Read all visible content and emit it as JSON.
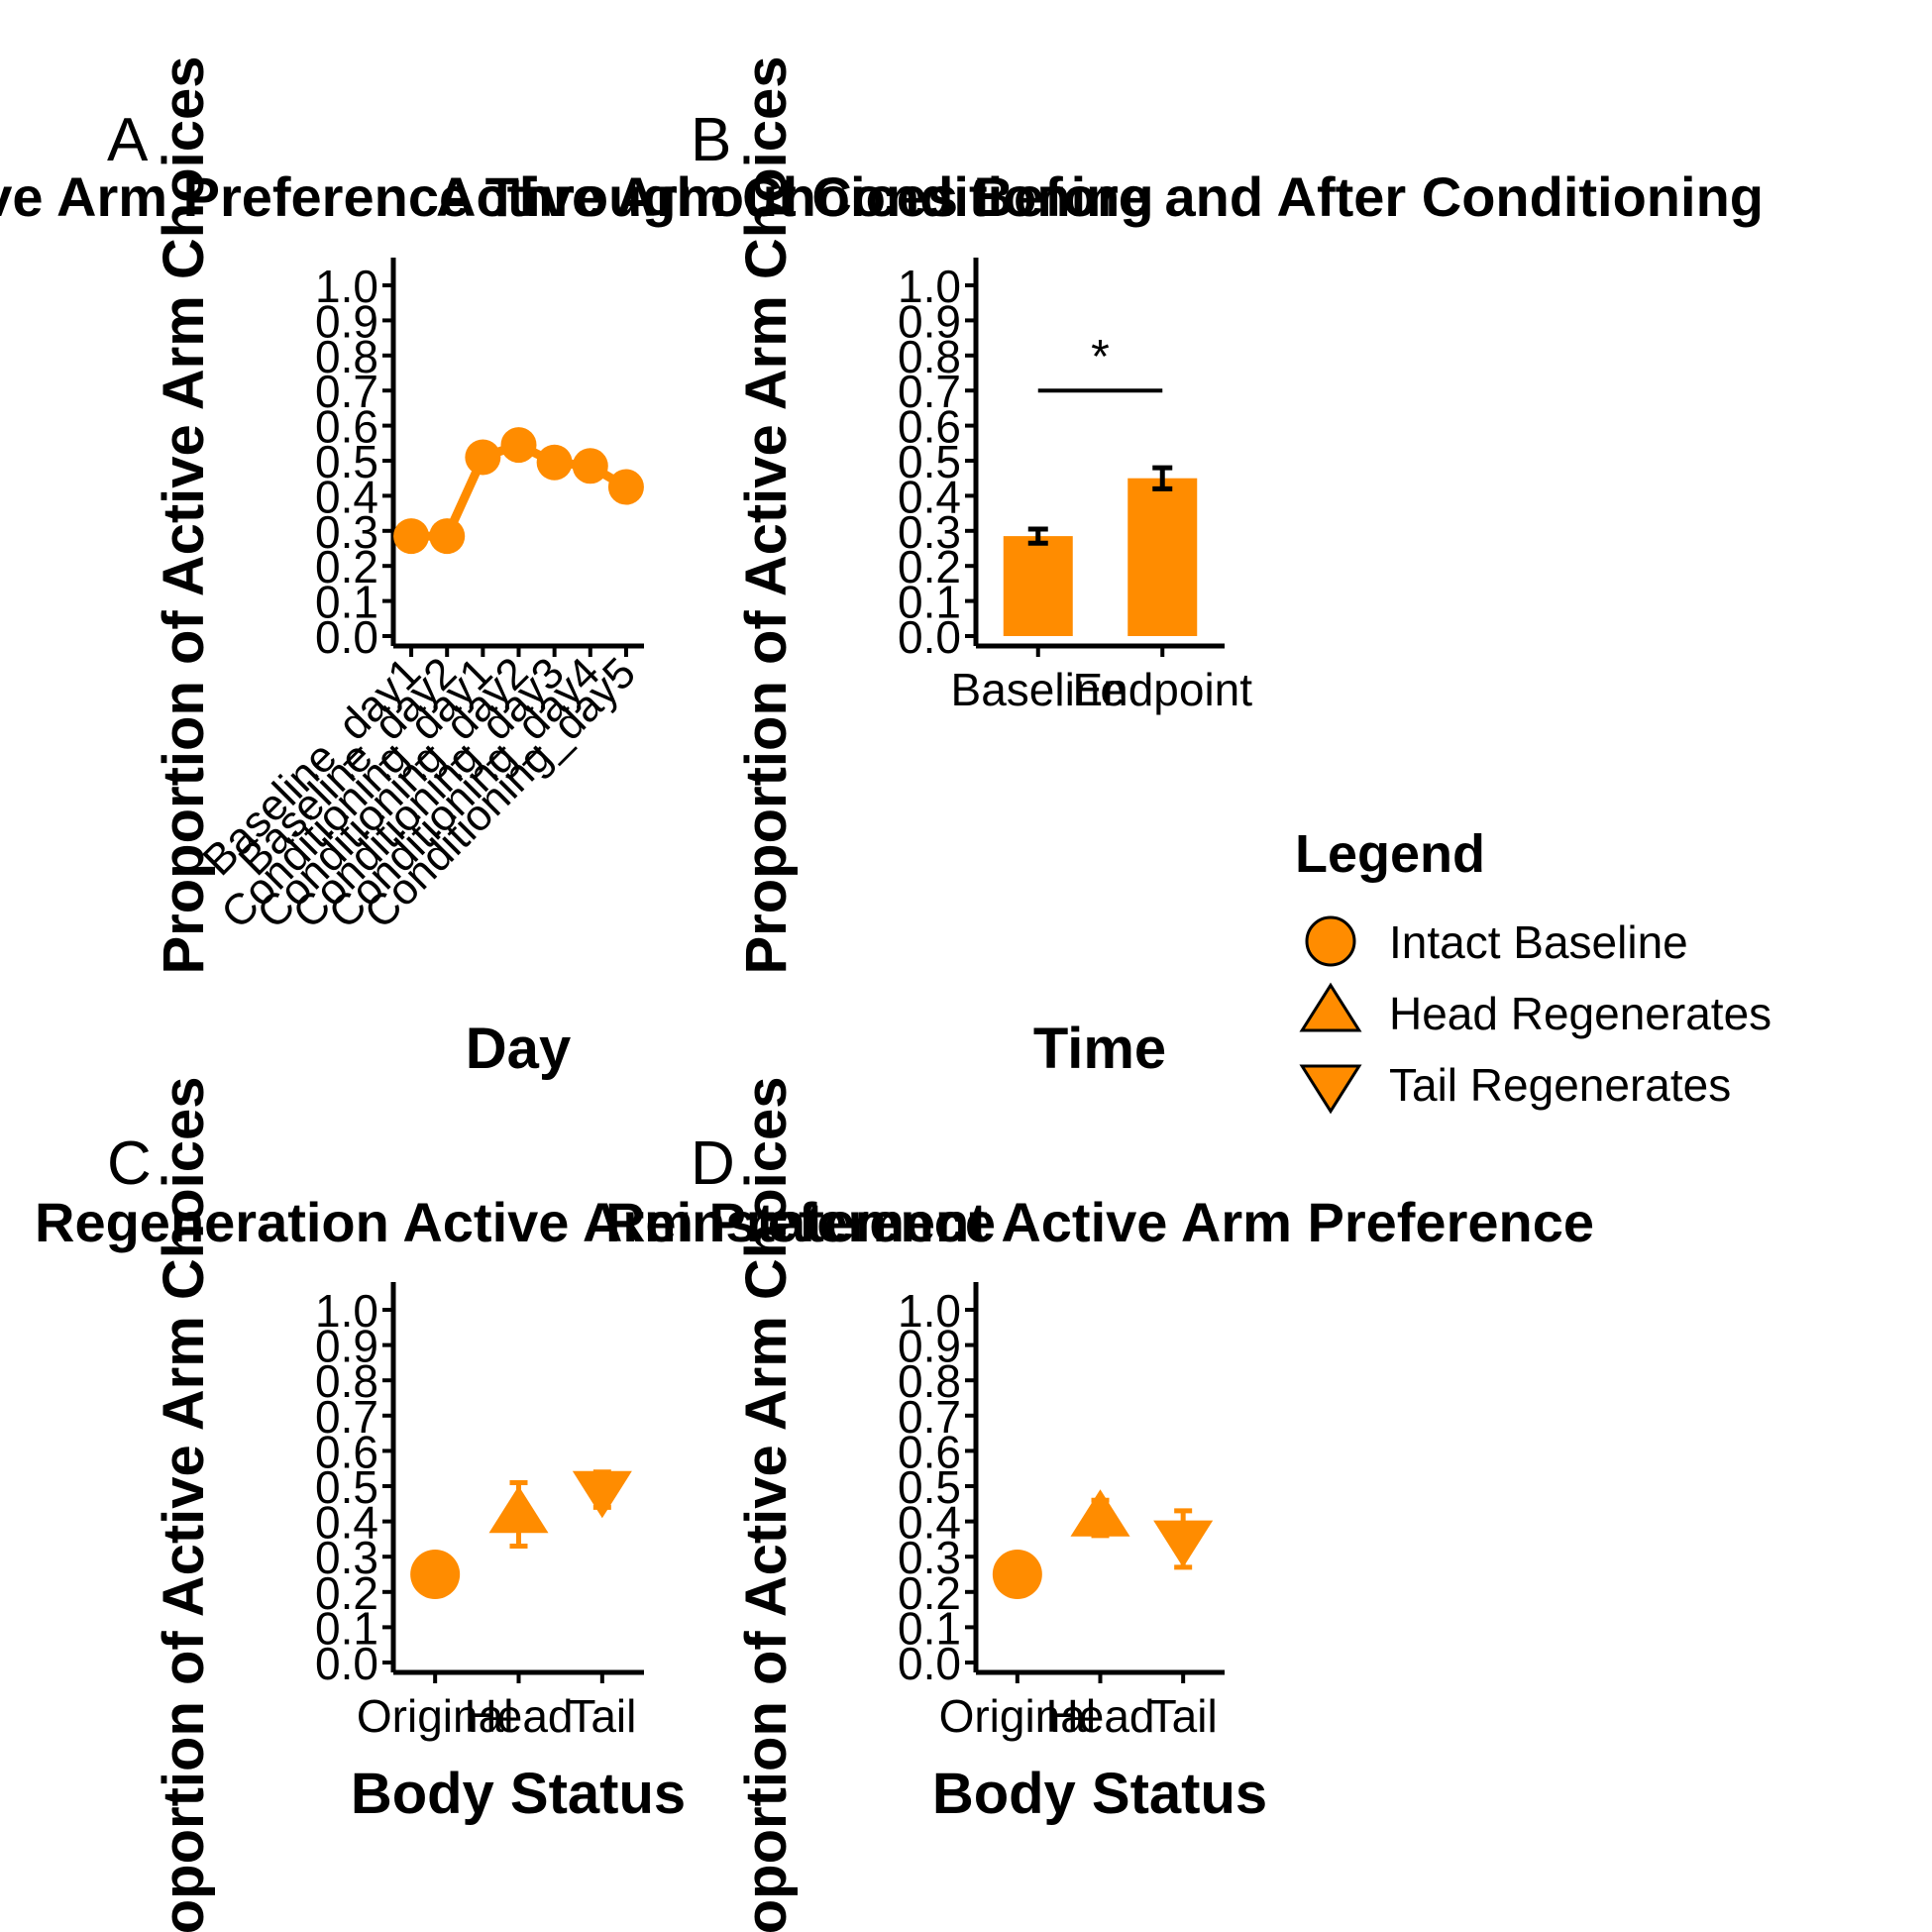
{
  "chart_data": [
    {
      "panel_label": "A",
      "type": "line",
      "title": "Active Arm Preference Throughout Conditioning",
      "xlabel": "Day",
      "ylabel": "Proportion of Active Arm Choices",
      "categories": [
        "Baseline_day1",
        "Baseline_day2",
        "Conditioning_day1",
        "Conditioning_day2",
        "Conditioning_day3",
        "Conditioning_day4",
        "Conditioning_day5"
      ],
      "ylim": [
        0,
        1
      ],
      "yticks": [
        "0.0",
        "0.1",
        "0.2",
        "0.3",
        "0.4",
        "0.5",
        "0.6",
        "0.7",
        "0.8",
        "0.9",
        "1.0"
      ],
      "series": [
        {
          "values": [
            0.285,
            0.285,
            0.51,
            0.545,
            0.495,
            0.485,
            0.425
          ],
          "errors": [
            0.01,
            0.01,
            0.03,
            0.03,
            0.03,
            0.02,
            0.02
          ],
          "marker": "circle"
        }
      ],
      "grid": false
    },
    {
      "panel_label": "B",
      "type": "bar",
      "title": "Active Arm Choices Before and After Conditioning",
      "xlabel": "Time",
      "ylabel": "Proportion of Active Arm Choices",
      "categories": [
        "Baseline",
        "Endpoint"
      ],
      "values": [
        0.285,
        0.45
      ],
      "errors": [
        0.02,
        0.03
      ],
      "ylim": [
        0,
        1
      ],
      "yticks": [
        "0.0",
        "0.1",
        "0.2",
        "0.3",
        "0.4",
        "0.5",
        "0.6",
        "0.7",
        "0.8",
        "0.9",
        "1.0"
      ],
      "annotation": {
        "text": "*",
        "bracket_y": 0.7
      },
      "grid": false
    },
    {
      "panel_label": "C",
      "type": "scatter",
      "title": "Regeneration Active Arm Preference",
      "xlabel": "Body Status",
      "ylabel": "Proportion of Active Arm Choices",
      "categories": [
        "Original",
        "Head",
        "Tail"
      ],
      "values": [
        0.25,
        0.42,
        0.49
      ],
      "errors": [
        0.0,
        0.09,
        0.05
      ],
      "markers": [
        "circle",
        "triangle-up",
        "triangle-down"
      ],
      "ylim": [
        0,
        1
      ],
      "yticks": [
        "0.0",
        "0.1",
        "0.2",
        "0.3",
        "0.4",
        "0.5",
        "0.6",
        "0.7",
        "0.8",
        "0.9",
        "1.0"
      ],
      "grid": false
    },
    {
      "panel_label": "D",
      "type": "scatter",
      "title": "Reinstatement Active Arm Preference",
      "xlabel": "Body Status",
      "ylabel": "Proportion of Active Arm Choices",
      "categories": [
        "Original",
        "Head",
        "Tail"
      ],
      "values": [
        0.25,
        0.41,
        0.35
      ],
      "errors": [
        0.0,
        0.05,
        0.08
      ],
      "markers": [
        "circle",
        "triangle-up",
        "triangle-down"
      ],
      "ylim": [
        0,
        1
      ],
      "yticks": [
        "0.0",
        "0.1",
        "0.2",
        "0.3",
        "0.4",
        "0.5",
        "0.6",
        "0.7",
        "0.8",
        "0.9",
        "1.0"
      ],
      "grid": false
    }
  ],
  "legend": {
    "title": "Legend",
    "placement": "right",
    "items": [
      {
        "label": "Intact Baseline",
        "marker": "circle"
      },
      {
        "label": "Head Regenerates",
        "marker": "triangle-up"
      },
      {
        "label": "Tail Regenerates",
        "marker": "triangle-down"
      }
    ]
  },
  "colors": {
    "fill": "#ff8c00",
    "axis": "#000000",
    "text": "#000000"
  }
}
